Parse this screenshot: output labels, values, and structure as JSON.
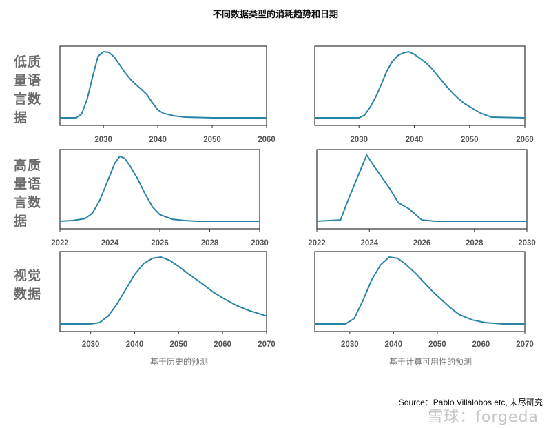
{
  "title": "不同数据类型的消耗趋势和日期",
  "row_labels": [
    "低质\n量语\n言数\n据",
    "高质\n量语\n言数\n据",
    "视觉\n数据"
  ],
  "col_captions": [
    "基于历史的预测",
    "基于计算可用性的预测"
  ],
  "source": "Source：Pablo Villalobos etc, 未尽研究",
  "watermark": "雪球：forgeda",
  "line_color": "#2a84a6",
  "chart_data": [
    {
      "type": "line",
      "row": "低质量语言数据",
      "column": "基于历史的预测",
      "xlim": [
        2022,
        2060
      ],
      "xticks": [
        2030,
        2040,
        2050,
        2060
      ],
      "x": [
        2022,
        2025,
        2026,
        2027,
        2028,
        2029,
        2030,
        2031,
        2032,
        2033,
        2034,
        2035,
        2036,
        2037,
        2038,
        2039,
        2040,
        2041,
        2043,
        2045,
        2050,
        2060
      ],
      "y": [
        0.0,
        0.0,
        0.06,
        0.28,
        0.62,
        0.93,
        1.0,
        0.99,
        0.92,
        0.8,
        0.68,
        0.58,
        0.5,
        0.43,
        0.35,
        0.23,
        0.12,
        0.07,
        0.03,
        0.01,
        0.0,
        0.0
      ]
    },
    {
      "type": "line",
      "row": "低质量语言数据",
      "column": "基于计算可用性的预测",
      "xlim": [
        2022,
        2060
      ],
      "xticks": [
        2030,
        2040,
        2050,
        2060
      ],
      "x": [
        2022,
        2030,
        2031,
        2032,
        2033,
        2034,
        2035,
        2036,
        2037,
        2038,
        2039,
        2040,
        2041,
        2042,
        2043,
        2044,
        2045,
        2046,
        2047,
        2048,
        2049,
        2050,
        2052,
        2054,
        2060
      ],
      "y": [
        0.0,
        0.0,
        0.04,
        0.16,
        0.31,
        0.5,
        0.7,
        0.85,
        0.94,
        0.98,
        1.0,
        0.96,
        0.9,
        0.84,
        0.76,
        0.66,
        0.56,
        0.46,
        0.37,
        0.29,
        0.22,
        0.17,
        0.07,
        0.01,
        0.0
      ]
    },
    {
      "type": "line",
      "row": "高质量语言数据",
      "column": "基于历史的预测",
      "xlim": [
        2022,
        2030
      ],
      "xticks": [
        2022,
        2024,
        2026,
        2028,
        2030
      ],
      "x": [
        2022,
        2022.5,
        2023,
        2023.3,
        2023.6,
        2023.9,
        2024.2,
        2024.4,
        2024.6,
        2024.8,
        2025.1,
        2025.4,
        2025.7,
        2026.0,
        2026.5,
        2027.0,
        2027.5,
        2028,
        2030
      ],
      "y": [
        0.0,
        0.01,
        0.04,
        0.12,
        0.32,
        0.6,
        0.88,
        0.98,
        0.95,
        0.84,
        0.65,
        0.42,
        0.22,
        0.1,
        0.03,
        0.01,
        0.0,
        0.0,
        0.0
      ]
    },
    {
      "type": "line",
      "row": "高质量语言数据",
      "column": "基于计算可用性的预测",
      "xlim": [
        2022,
        2030
      ],
      "xticks": [
        2022,
        2024,
        2026,
        2028,
        2030
      ],
      "x": [
        2022,
        2022.9,
        2023.2,
        2023.5,
        2023.9,
        2024.2,
        2024.5,
        2024.8,
        2025.1,
        2025.5,
        2026.0,
        2026.5,
        2027,
        2028,
        2030
      ],
      "y": [
        0.0,
        0.02,
        0.33,
        0.62,
        1.0,
        0.82,
        0.65,
        0.48,
        0.28,
        0.19,
        0.02,
        0.0,
        0.0,
        0.0,
        0.0
      ]
    },
    {
      "type": "line",
      "row": "视觉数据",
      "column": "基于历史的预测",
      "xlim": [
        2023,
        2070
      ],
      "xticks": [
        2030,
        2040,
        2050,
        2060,
        2070
      ],
      "x": [
        2023,
        2030,
        2032,
        2034,
        2036,
        2038,
        2040,
        2042,
        2044,
        2046,
        2048,
        2050,
        2052,
        2055,
        2058,
        2060,
        2063,
        2066,
        2070
      ],
      "y": [
        0.0,
        0.0,
        0.02,
        0.12,
        0.3,
        0.52,
        0.74,
        0.9,
        0.98,
        1.0,
        0.95,
        0.86,
        0.76,
        0.62,
        0.47,
        0.39,
        0.28,
        0.2,
        0.12
      ]
    },
    {
      "type": "line",
      "row": "视觉数据",
      "column": "基于计算可用性的预测",
      "xlim": [
        2022,
        2070
      ],
      "xticks": [
        2030,
        2040,
        2050,
        2060,
        2070
      ],
      "x": [
        2022,
        2029,
        2031,
        2033,
        2035,
        2037,
        2039,
        2041,
        2043,
        2045,
        2047,
        2049,
        2051,
        2053,
        2055,
        2058,
        2061,
        2065,
        2070
      ],
      "y": [
        0.0,
        0.0,
        0.08,
        0.35,
        0.66,
        0.88,
        1.0,
        0.98,
        0.88,
        0.76,
        0.62,
        0.48,
        0.36,
        0.24,
        0.14,
        0.06,
        0.02,
        0.0,
        0.0
      ]
    }
  ]
}
